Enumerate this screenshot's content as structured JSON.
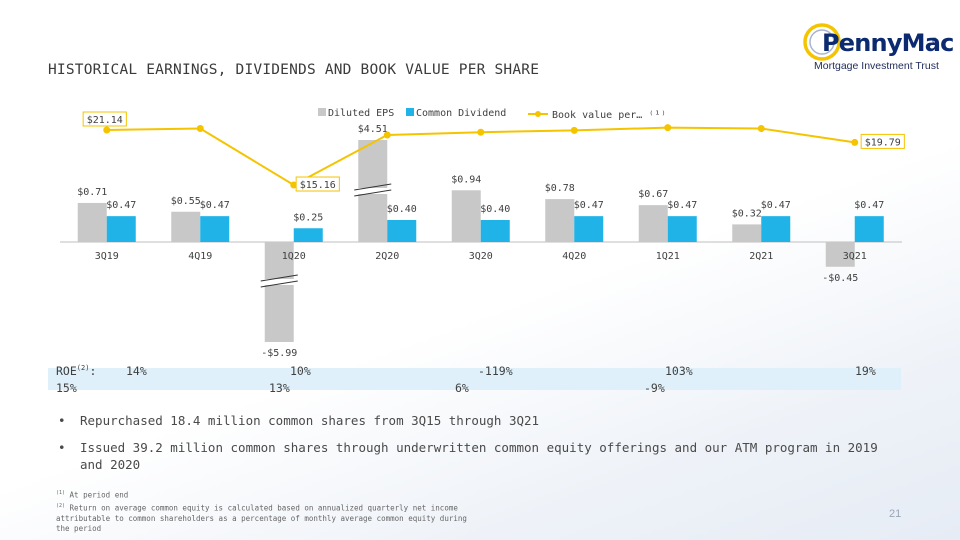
{
  "page": {
    "title": "HISTORICAL EARNINGS, DIVIDENDS AND BOOK VALUE PER SHARE",
    "page_number": "21"
  },
  "logo": {
    "name": "PennyMac",
    "registered": "®",
    "subtitle": "Mortgage Investment Trust"
  },
  "chart_data": {
    "type": "bar",
    "categories": [
      "3Q19",
      "4Q19",
      "1Q20",
      "2Q20",
      "3Q20",
      "4Q20",
      "1Q21",
      "2Q21",
      "3Q21"
    ],
    "series": [
      {
        "name": "Diluted EPS",
        "kind": "bar",
        "color": "#c8c8c8",
        "values": [
          0.71,
          0.55,
          -5.99,
          4.51,
          0.94,
          0.78,
          0.67,
          0.32,
          -0.45
        ],
        "labels": [
          "$0.71",
          "$0.55",
          "-$5.99",
          "$4.51",
          "$0.94",
          "$0.78",
          "$0.67",
          "$0.32",
          "-$0.45"
        ]
      },
      {
        "name": "Common Dividend",
        "kind": "bar",
        "color": "#1fb3e8",
        "values": [
          0.47,
          0.47,
          0.25,
          0.4,
          0.4,
          0.47,
          0.47,
          0.47,
          0.47
        ],
        "labels": [
          "$0.47",
          "$0.47",
          "$0.25",
          "$0.40",
          "$0.40",
          "$0.47",
          "$0.47",
          "$0.47",
          "$0.47"
        ]
      },
      {
        "name": "Book value per… ⁽¹⁾",
        "kind": "line",
        "color": "#f5c400",
        "values": [
          21.14,
          21.3,
          15.16,
          20.6,
          20.9,
          21.1,
          21.4,
          21.3,
          19.79
        ],
        "labels": [
          "$21.14",
          "",
          "$15.16",
          "",
          "",
          "",
          "",
          "",
          "$19.79"
        ]
      }
    ],
    "legend_position": "top"
  },
  "roe": {
    "label": "ROE",
    "label_sup": "(2)",
    "colon": ":",
    "row1": [
      "14%",
      "10%",
      "-119%",
      "103%",
      "19%"
    ],
    "row2": [
      "15%",
      "13%",
      "6%",
      "-9%"
    ]
  },
  "bullets": [
    "Repurchased 18.4 million common shares from 3Q15 through 3Q21",
    "Issued 39.2 million common shares through underwritten common equity offerings and our ATM program in 2019 and 2020"
  ],
  "bullet_symbol": "•",
  "footnotes": [
    {
      "mark": "(1)",
      "text": "At period end"
    },
    {
      "mark": "(2)",
      "text": "Return on average common equity is calculated based on annualized quarterly net income attributable to common shareholders as a percentage of monthly average common equity during the period"
    }
  ]
}
